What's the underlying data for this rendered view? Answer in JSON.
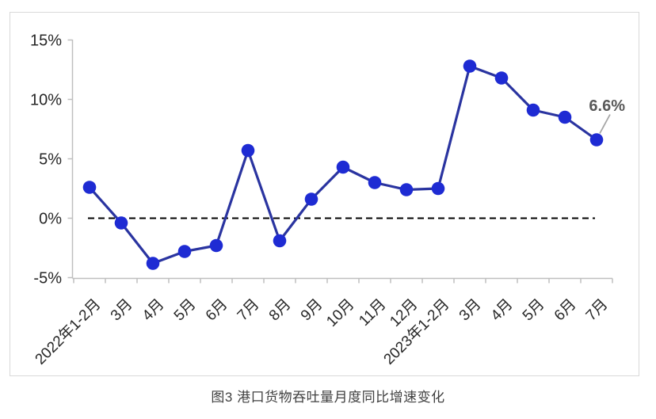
{
  "figure": {
    "caption": "图3 港口货物吞吐量月度同比增速变化"
  },
  "chart_data": {
    "type": "line",
    "title": "图3 港口货物吞吐量月度同比增速变化",
    "categories": [
      "2022年1-2月",
      "3月",
      "4月",
      "5月",
      "6月",
      "7月",
      "8月",
      "9月",
      "10月",
      "11月",
      "12月",
      "2023年1-2月",
      "3月",
      "4月",
      "5月",
      "6月",
      "7月"
    ],
    "values": [
      2.6,
      -0.4,
      -3.8,
      -2.8,
      -2.3,
      5.7,
      -1.9,
      1.6,
      4.3,
      3.0,
      2.4,
      2.5,
      12.8,
      11.8,
      9.1,
      8.5,
      6.6
    ],
    "unit": "%",
    "xlabel": "",
    "ylabel": "",
    "ylim": [
      -5,
      15
    ],
    "yticks": [
      15,
      10,
      5,
      0,
      -5
    ],
    "ytick_labels": [
      "15%",
      "10%",
      "5%",
      "0%",
      "-5%"
    ],
    "x_tick_rotation_deg": -45,
    "grid": "off",
    "legend": "none",
    "zero_line": {
      "style": "dashed",
      "color": "#000000"
    },
    "annotation": {
      "text": "6.6%",
      "category_index": 16
    },
    "colors": {
      "line": "#2A34A0",
      "marker": "#1E2BD3",
      "axis": "#BFBFBF",
      "tick_label": "#262626",
      "annotation_text": "#595959",
      "leader_line": "#A6A6A6",
      "frame_border": "#D9D9D9",
      "caption_text": "#404040"
    }
  }
}
